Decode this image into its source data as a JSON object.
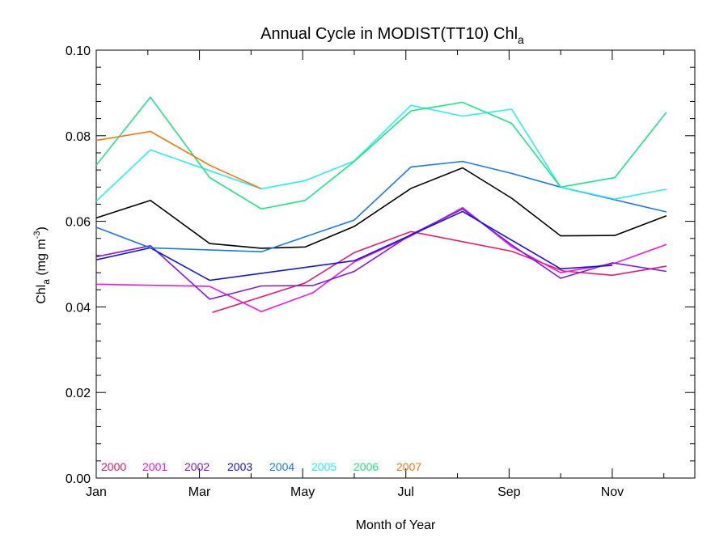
{
  "chart_data": {
    "type": "line",
    "title_main": "Annual Cycle in MODIST(TT10) Chl",
    "title_sub": "a",
    "xlabel": "Month of Year",
    "ylabel_main": "Chl",
    "ylabel_sub": "a",
    "ylabel_unit": " (mg m",
    "ylabel_sup": "-3",
    "ylabel_close": ")",
    "xlim": [
      1,
      12.6
    ],
    "ylim": [
      0,
      0.1
    ],
    "x_ticks": [
      1,
      3,
      5,
      7,
      9,
      11
    ],
    "x_tick_labels": [
      "Jan",
      "Mar",
      "May",
      "Jul",
      "Sep",
      "Nov"
    ],
    "x_minor_ticks": [
      2,
      4,
      6,
      8,
      10,
      12
    ],
    "y_ticks": [
      0,
      0.02,
      0.04,
      0.06,
      0.08,
      0.1
    ],
    "y_tick_labels": [
      "0.00",
      "0.02",
      "0.04",
      "0.06",
      "0.08",
      "0.10"
    ],
    "y_minor_ticks": [
      0.004,
      0.008,
      0.012,
      0.016,
      0.024,
      0.028,
      0.032,
      0.036,
      0.044,
      0.048,
      0.052,
      0.056,
      0.064,
      0.068,
      0.072,
      0.076,
      0.084,
      0.088,
      0.092,
      0.096
    ],
    "legend_placement": "bottom-left",
    "grid": false,
    "series": [
      {
        "name": "2000",
        "color": "#e6196e",
        "points": [
          [
            3.25,
            0.0387
          ],
          [
            5.05,
            0.0456
          ],
          [
            6.0,
            0.0527
          ],
          [
            7.1,
            0.0576
          ],
          [
            9.05,
            0.053
          ],
          [
            10.05,
            0.0484
          ],
          [
            11.0,
            0.0474
          ],
          [
            12.05,
            0.0495
          ]
        ]
      },
      {
        "name": "2001",
        "color": "#f014e6",
        "points": [
          [
            1.0,
            0.0453
          ],
          [
            3.2,
            0.0448
          ],
          [
            4.2,
            0.0389
          ],
          [
            5.2,
            0.0433
          ],
          [
            6.0,
            0.0505
          ],
          [
            7.1,
            0.0566
          ],
          [
            8.1,
            0.0632
          ],
          [
            9.05,
            0.0541
          ],
          [
            10.0,
            0.048
          ],
          [
            11.05,
            0.0502
          ],
          [
            12.05,
            0.0546
          ]
        ]
      },
      {
        "name": "2002",
        "color": "#8218dc",
        "points": [
          [
            1.0,
            0.0517
          ],
          [
            2.05,
            0.0543
          ],
          [
            3.2,
            0.0418
          ],
          [
            4.2,
            0.0449
          ],
          [
            5.2,
            0.045
          ],
          [
            6.0,
            0.0483
          ],
          [
            7.1,
            0.0569
          ],
          [
            8.1,
            0.0629
          ],
          [
            9.05,
            0.0545
          ],
          [
            10.0,
            0.0467
          ],
          [
            11.0,
            0.0503
          ],
          [
            12.05,
            0.0483
          ]
        ]
      },
      {
        "name": "2003",
        "color": "#1414dc",
        "points": [
          [
            1.0,
            0.051
          ],
          [
            2.05,
            0.0538
          ],
          [
            3.2,
            0.0462
          ],
          [
            6.0,
            0.0508
          ],
          [
            7.1,
            0.0568
          ],
          [
            8.1,
            0.0623
          ],
          [
            10.0,
            0.0489
          ],
          [
            11.0,
            0.0497
          ]
        ]
      },
      {
        "name": "2004",
        "color": "#1e78e6",
        "points": [
          [
            1.0,
            0.0586
          ],
          [
            2.05,
            0.0538
          ],
          [
            4.2,
            0.0529
          ],
          [
            6.0,
            0.0603
          ],
          [
            7.1,
            0.0727
          ],
          [
            8.1,
            0.074
          ],
          [
            9.05,
            0.0712
          ],
          [
            10.0,
            0.068
          ],
          [
            12.05,
            0.0622
          ]
        ]
      },
      {
        "name": "2005",
        "color": "#28f0f0",
        "points": [
          [
            1.0,
            0.0647
          ],
          [
            2.05,
            0.0767
          ],
          [
            4.2,
            0.0676
          ],
          [
            5.05,
            0.0695
          ],
          [
            6.0,
            0.0741
          ],
          [
            7.1,
            0.0871
          ],
          [
            8.1,
            0.0846
          ],
          [
            9.05,
            0.0862
          ],
          [
            10.0,
            0.068
          ],
          [
            11.05,
            0.0652
          ],
          [
            12.05,
            0.0675
          ]
        ]
      },
      {
        "name": "2006",
        "color": "#1ee682",
        "points": [
          [
            1.0,
            0.0731
          ],
          [
            2.05,
            0.089
          ],
          [
            3.2,
            0.0702
          ],
          [
            4.2,
            0.0629
          ],
          [
            5.05,
            0.0649
          ],
          [
            6.0,
            0.074
          ],
          [
            7.1,
            0.0858
          ],
          [
            8.1,
            0.0878
          ],
          [
            9.05,
            0.0829
          ],
          [
            10.0,
            0.068
          ],
          [
            11.05,
            0.0702
          ],
          [
            12.05,
            0.0855
          ]
        ]
      },
      {
        "name": "2007",
        "color": "#f07814",
        "points": [
          [
            1.0,
            0.0789
          ],
          [
            2.05,
            0.081
          ],
          [
            3.2,
            0.0731
          ],
          [
            4.2,
            0.0676
          ]
        ]
      },
      {
        "name": "",
        "color": "#000000",
        "points": [
          [
            1.0,
            0.0608
          ],
          [
            2.05,
            0.0649
          ],
          [
            3.2,
            0.0548
          ],
          [
            4.2,
            0.0537
          ],
          [
            5.05,
            0.054
          ],
          [
            6.0,
            0.0588
          ],
          [
            7.1,
            0.0677
          ],
          [
            8.1,
            0.0725
          ],
          [
            9.05,
            0.0654
          ],
          [
            10.0,
            0.0566
          ],
          [
            11.05,
            0.0567
          ],
          [
            12.05,
            0.0613
          ]
        ]
      }
    ]
  }
}
